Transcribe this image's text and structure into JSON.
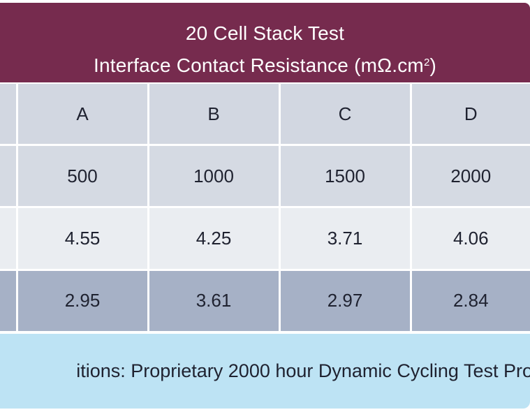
{
  "colors": {
    "header_bg": "#762b4e",
    "header_text": "#ffffff",
    "row_letters_bg": "#d2d7e1",
    "row_hours_bg": "#d5dae3",
    "row_initial_bg": "#eaedf1",
    "row_final_bg": "#a6b1c6",
    "footer_bg": "#bde3f4"
  },
  "header": {
    "title_line1": "20 Cell Stack Test",
    "title_line2_prefix": "Interface Contact Resistance (mΩ.cm",
    "title_line2_sup": "2",
    "title_line2_suffix": ")"
  },
  "table": {
    "rows": [
      {
        "cells": [
          "A",
          "B",
          "C",
          "D"
        ]
      },
      {
        "cells": [
          "500",
          "1000",
          "1500",
          "2000"
        ]
      },
      {
        "cells": [
          "4.55",
          "4.25",
          "3.71",
          "4.06"
        ]
      },
      {
        "cells": [
          "2.95",
          "3.61",
          "2.97",
          "2.84"
        ]
      }
    ]
  },
  "footer": {
    "text": "itions: Proprietary 2000 hour Dynamic Cycling Test Pro"
  }
}
